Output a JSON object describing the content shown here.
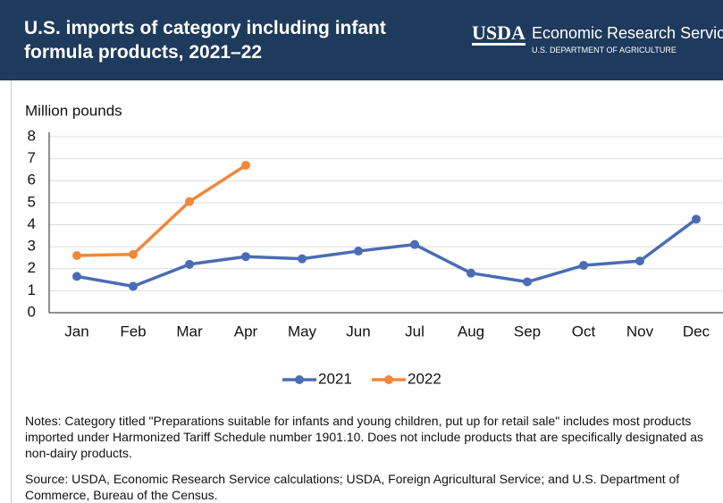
{
  "branding": {
    "logo": "USDA",
    "agency": "Economic Research Service",
    "department": "U.S. DEPARTMENT OF AGRICULTURE"
  },
  "chart_data": {
    "type": "line",
    "title": "U.S. imports of category including infant formula products, 2021–22",
    "y_label": "Million pounds",
    "categories": [
      "Jan",
      "Feb",
      "Mar",
      "Apr",
      "May",
      "Jun",
      "Jul",
      "Aug",
      "Sep",
      "Oct",
      "Nov",
      "Dec"
    ],
    "series": [
      {
        "name": "2021",
        "color": "#4a6cb5",
        "values": [
          1.65,
          1.2,
          2.2,
          2.55,
          2.45,
          2.8,
          3.1,
          1.8,
          1.4,
          2.15,
          2.35,
          4.25
        ]
      },
      {
        "name": "2022",
        "color": "#f0883a",
        "values": [
          2.6,
          2.65,
          5.05,
          6.7,
          null,
          null,
          null,
          null,
          null,
          null,
          null,
          null
        ]
      }
    ],
    "ylim": [
      0,
      8
    ],
    "yticks": [
      0,
      1,
      2,
      3,
      4,
      5,
      6,
      7,
      8
    ],
    "grid": true,
    "notes": "Notes: Category titled \"Preparations suitable for infants and young children, put up for retail sale\" includes most products imported under Harmonized Tariff Schedule number 1901.10. Does not include products that are specifically designated as non-dairy products.",
    "source": "Source: USDA, Economic Research Service calculations; USDA, Foreign Agricultural Service; and U.S. Department of Commerce, Bureau of the Census."
  }
}
